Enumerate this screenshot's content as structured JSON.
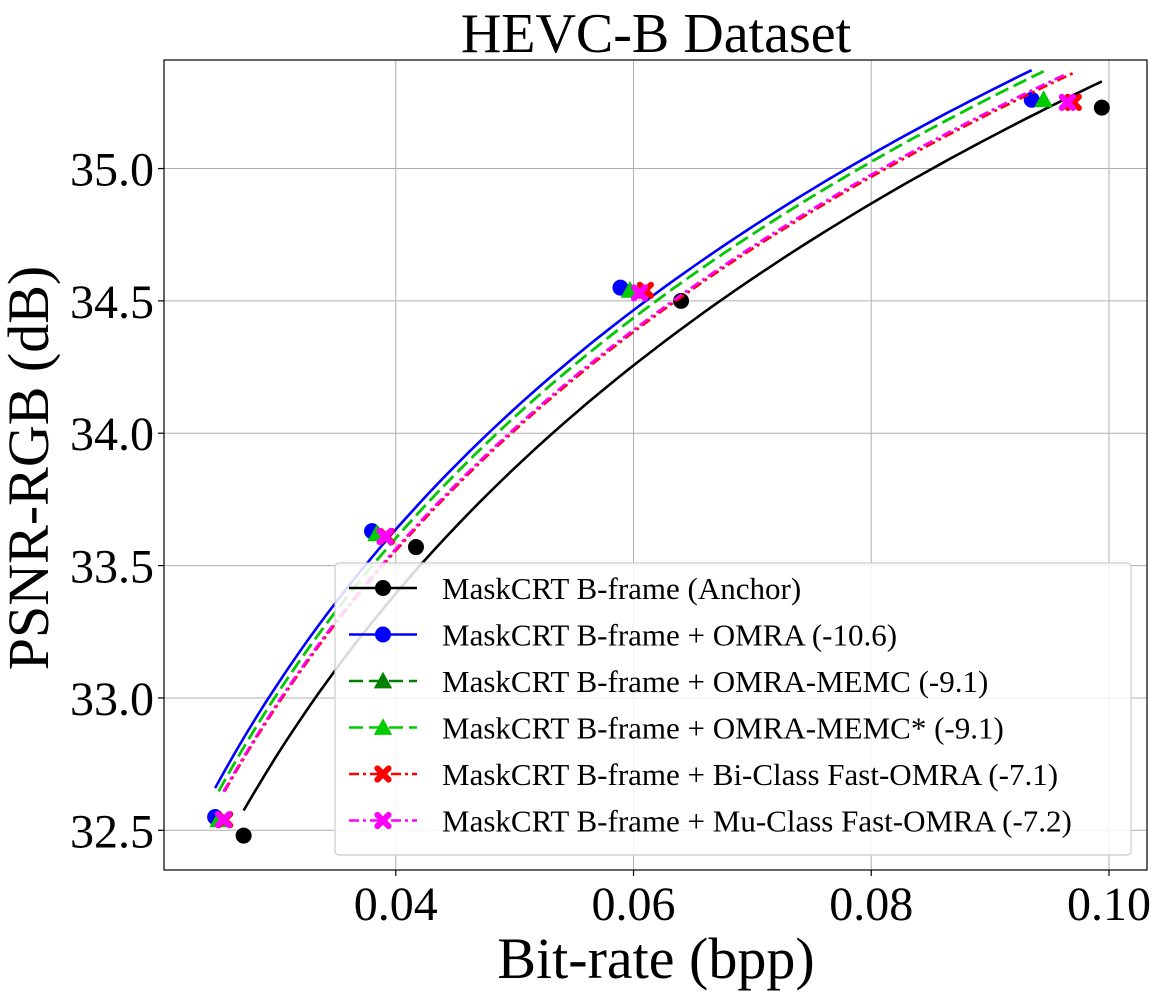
{
  "chart_data": {
    "type": "line",
    "title": "HEVC-B Dataset",
    "xlabel": "Bit-rate (bpp)",
    "ylabel": "PSNR-RGB (dB)",
    "xlim": [
      0.0205,
      0.1032
    ],
    "ylim": [
      32.35,
      35.41
    ],
    "xticks": [
      0.04,
      0.06,
      0.08,
      0.1
    ],
    "xtick_labels": [
      "0.04",
      "0.06",
      "0.08",
      "0.10"
    ],
    "yticks": [
      32.5,
      33.0,
      33.5,
      34.0,
      34.5,
      35.0
    ],
    "ytick_labels": [
      "32.5",
      "33.0",
      "33.5",
      "34.0",
      "34.5",
      "35.0"
    ],
    "grid": true,
    "legend_position": "lower-right",
    "series": [
      {
        "name": "MaskCRT B-frame (Anchor)",
        "color": "#000000",
        "dash": "solid",
        "marker": "circle",
        "x": [
          0.0272,
          0.0417,
          0.064,
          0.0994
        ],
        "y": [
          32.48,
          33.57,
          34.5,
          35.23
        ]
      },
      {
        "name": "MaskCRT B-frame + OMRA (-10.6)",
        "color": "#0000ff",
        "dash": "solid",
        "marker": "circle",
        "x": [
          0.0248,
          0.038,
          0.0589,
          0.0935
        ],
        "y": [
          32.55,
          33.63,
          34.55,
          35.26
        ]
      },
      {
        "name": "MaskCRT B-frame + OMRA-MEMC (-9.1)",
        "color": "#008000",
        "dash": "dashed",
        "marker": "triangle",
        "x": [
          0.0251,
          0.0384,
          0.0597,
          0.0945
        ],
        "y": [
          32.54,
          33.62,
          34.54,
          35.26
        ]
      },
      {
        "name": "MaskCRT B-frame + OMRA-MEMC* (-9.1)",
        "color": "#00cc00",
        "dash": "dashed",
        "marker": "triangle",
        "x": [
          0.0251,
          0.0384,
          0.0597,
          0.0945
        ],
        "y": [
          32.54,
          33.62,
          34.54,
          35.26
        ]
      },
      {
        "name": "MaskCRT B-frame + Bi-Class Fast-OMRA (-7.1)",
        "color": "#ff0000",
        "dash": "dashdot",
        "marker": "x",
        "x": [
          0.0256,
          0.0392,
          0.061,
          0.097
        ],
        "y": [
          32.54,
          33.61,
          34.54,
          35.25
        ]
      },
      {
        "name": "MaskCRT B-frame + Mu-Class Fast-OMRA (-7.2)",
        "color": "#ff00ff",
        "dash": "dashdot",
        "marker": "x",
        "x": [
          0.0255,
          0.0391,
          0.0605,
          0.0965
        ],
        "y": [
          32.54,
          33.61,
          34.53,
          35.25
        ]
      }
    ]
  }
}
